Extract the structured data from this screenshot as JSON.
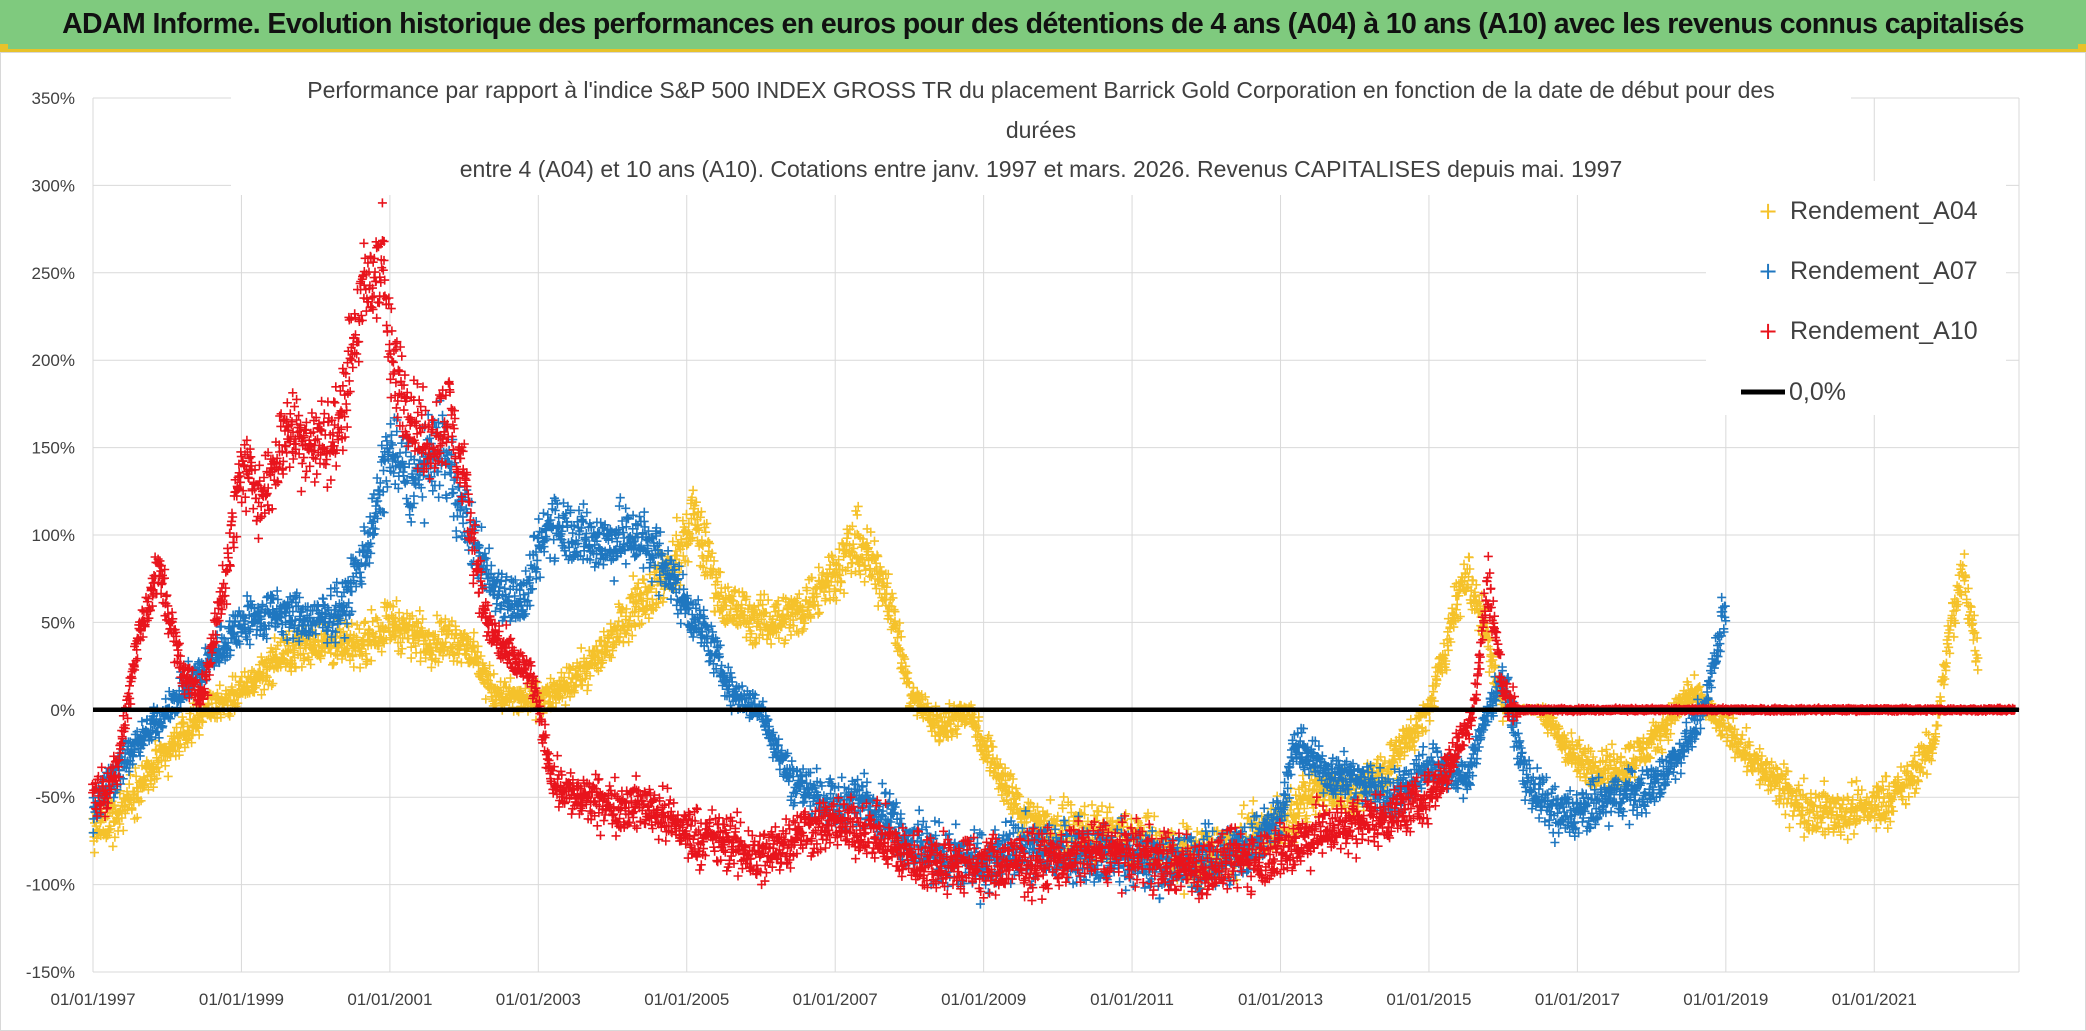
{
  "banner": {
    "title": "ADAM Informe. Evolution historique des performances en euros pour des détentions de 4 ans (A04) à 10 ans (A10) avec les revenus connus capitalisés"
  },
  "colors": {
    "banner_bg": "#7fca7e",
    "banner_border": "#e8c22a",
    "A04": "#f5c22b",
    "A07": "#1f77c0",
    "A10": "#e8141c",
    "zero_line": "#000000",
    "grid": "#d9d9d9"
  },
  "chart_data": {
    "type": "scatter",
    "title_lines": [
      "Performance  par rapport à l'indice S&P 500 INDEX GROSS TR  du placement Barrick Gold Corporation en fonction de la date de début pour des",
      "durées",
      "entre 4 (A04) et 10 ans (A10). Cotations entre janv. 1997 et mars. 2026. Revenus CAPITALISES depuis mai. 1997"
    ],
    "x_range": [
      1997.0,
      2022.95
    ],
    "x_ticks": [
      {
        "value": 1997,
        "label": "01/01/1997"
      },
      {
        "value": 1999,
        "label": "01/01/1999"
      },
      {
        "value": 2001,
        "label": "01/01/2001"
      },
      {
        "value": 2003,
        "label": "01/01/2003"
      },
      {
        "value": 2005,
        "label": "01/01/2005"
      },
      {
        "value": 2007,
        "label": "01/01/2007"
      },
      {
        "value": 2009,
        "label": "01/01/2009"
      },
      {
        "value": 2011,
        "label": "01/01/2011"
      },
      {
        "value": 2013,
        "label": "01/01/2013"
      },
      {
        "value": 2015,
        "label": "01/01/2015"
      },
      {
        "value": 2017,
        "label": "01/01/2017"
      },
      {
        "value": 2019,
        "label": "01/01/2019"
      },
      {
        "value": 2021,
        "label": "01/01/2021"
      }
    ],
    "y_range": [
      -150,
      350
    ],
    "y_ticks": [
      {
        "value": 350,
        "label": "350%"
      },
      {
        "value": 300,
        "label": "300%"
      },
      {
        "value": 250,
        "label": "250%"
      },
      {
        "value": 200,
        "label": "200%"
      },
      {
        "value": 150,
        "label": "150%"
      },
      {
        "value": 100,
        "label": "100%"
      },
      {
        "value": 50,
        "label": "50%"
      },
      {
        "value": 0,
        "label": "0%"
      },
      {
        "value": -50,
        "label": "-50%"
      },
      {
        "value": -100,
        "label": "-100%"
      },
      {
        "value": -150,
        "label": "-150%"
      }
    ],
    "legend": [
      "Rendement_A04",
      "Rendement_A07",
      "Rendement_A10",
      "0,0%"
    ],
    "legend_position": "top-right",
    "grid": true,
    "series": [
      {
        "name": "Rendement_A04",
        "key": "A04",
        "x": [
          1997.0,
          1997.5,
          1998.0,
          1998.5,
          1999.0,
          1999.5,
          2000.0,
          2000.5,
          2001.0,
          2001.5,
          2002.0,
          2002.4,
          2002.8,
          2003.3,
          2003.8,
          2004.3,
          2004.8,
          2005.1,
          2005.5,
          2006.0,
          2006.5,
          2007.0,
          2007.3,
          2007.7,
          2008.0,
          2008.4,
          2008.8,
          2009.0,
          2009.5,
          2010.0,
          2010.5,
          2011.0,
          2011.5,
          2012.0,
          2012.5,
          2013.0,
          2013.5,
          2014.0,
          2014.5,
          2015.0,
          2015.5,
          2015.8,
          2016.0,
          2016.5,
          2017.0,
          2017.5,
          2018.0,
          2018.5,
          2019.0,
          2019.5,
          2020.0,
          2020.5,
          2021.0,
          2021.4,
          2021.8,
          2022.0,
          2022.2,
          2022.4
        ],
        "values": [
          -70,
          -50,
          -25,
          0,
          10,
          30,
          40,
          35,
          50,
          40,
          40,
          10,
          5,
          10,
          30,
          60,
          80,
          110,
          60,
          50,
          55,
          80,
          95,
          70,
          10,
          -10,
          0,
          -20,
          -60,
          -70,
          -72,
          -75,
          -82,
          -85,
          -75,
          -65,
          -45,
          -50,
          -30,
          0,
          80,
          40,
          0,
          0,
          -30,
          -35,
          -20,
          10,
          -10,
          -35,
          -55,
          -60,
          -55,
          -45,
          -20,
          40,
          80,
          30
        ]
      },
      {
        "name": "Rendement_A07",
        "key": "A07",
        "x": [
          1997.0,
          1997.4,
          1997.8,
          1998.2,
          1998.6,
          1999.0,
          1999.5,
          2000.0,
          2000.4,
          2000.8,
          2001.0,
          2001.3,
          2001.7,
          2002.0,
          2002.4,
          2002.8,
          2003.0,
          2003.2,
          2003.5,
          2003.9,
          2004.3,
          2004.6,
          2005.0,
          2005.3,
          2005.6,
          2006.0,
          2006.4,
          2006.8,
          2007.0,
          2007.3,
          2007.7,
          2008.0,
          2008.5,
          2009.0,
          2009.5,
          2010.0,
          2010.5,
          2011.0,
          2011.5,
          2012.0,
          2012.5,
          2013.0,
          2013.2,
          2013.6,
          2014.0,
          2014.5,
          2015.0,
          2015.5,
          2015.8,
          2016.0,
          2016.3,
          2016.7,
          2017.0,
          2017.5,
          2018.0,
          2018.3,
          2018.7,
          2019.0
        ],
        "values": [
          -55,
          -30,
          -10,
          10,
          30,
          50,
          55,
          50,
          60,
          110,
          150,
          130,
          150,
          110,
          70,
          60,
          90,
          110,
          100,
          95,
          100,
          90,
          60,
          40,
          10,
          0,
          -40,
          -50,
          -55,
          -50,
          -60,
          -75,
          -85,
          -88,
          -80,
          -80,
          -82,
          -85,
          -88,
          -85,
          -80,
          -60,
          -20,
          -35,
          -40,
          -50,
          -30,
          -40,
          0,
          20,
          -40,
          -60,
          -60,
          -50,
          -45,
          -30,
          0,
          60
        ]
      },
      {
        "name": "Rendement_A10",
        "key": "A10",
        "x": [
          1997.0,
          1997.3,
          1997.6,
          1997.9,
          1998.2,
          1998.5,
          1998.8,
          1999.0,
          1999.3,
          1999.6,
          2000.0,
          2000.3,
          2000.6,
          2000.9,
          2001.0,
          2001.2,
          2001.5,
          2001.8,
          2002.0,
          2002.3,
          2002.6,
          2002.9,
          2003.0,
          2003.2,
          2003.5,
          2004.0,
          2004.5,
          2005.0,
          2005.5,
          2006.0,
          2006.5,
          2007.0,
          2007.5,
          2008.0,
          2008.5,
          2009.0,
          2009.5,
          2010.0,
          2010.5,
          2011.0,
          2011.5,
          2012.0,
          2012.5,
          2013.0,
          2013.5,
          2014.0,
          2014.5,
          2015.0,
          2015.3,
          2015.6,
          2015.8,
          2016.0,
          2016.2,
          2017.0,
          2018.0,
          2019.0,
          2020.0,
          2021.0,
          2022.0,
          2022.9
        ],
        "values": [
          -50,
          -40,
          40,
          80,
          20,
          10,
          80,
          140,
          120,
          160,
          150,
          160,
          230,
          260,
          200,
          180,
          150,
          170,
          130,
          50,
          30,
          20,
          0,
          -40,
          -50,
          -55,
          -55,
          -70,
          -75,
          -85,
          -70,
          -65,
          -70,
          -85,
          -88,
          -90,
          -88,
          -85,
          -80,
          -82,
          -88,
          -90,
          -85,
          -82,
          -70,
          -65,
          -60,
          -50,
          -30,
          0,
          75,
          10,
          0,
          0,
          0,
          0,
          0,
          0,
          0,
          0
        ]
      }
    ],
    "reference_line": {
      "name": "0,0%",
      "value": 0
    }
  }
}
